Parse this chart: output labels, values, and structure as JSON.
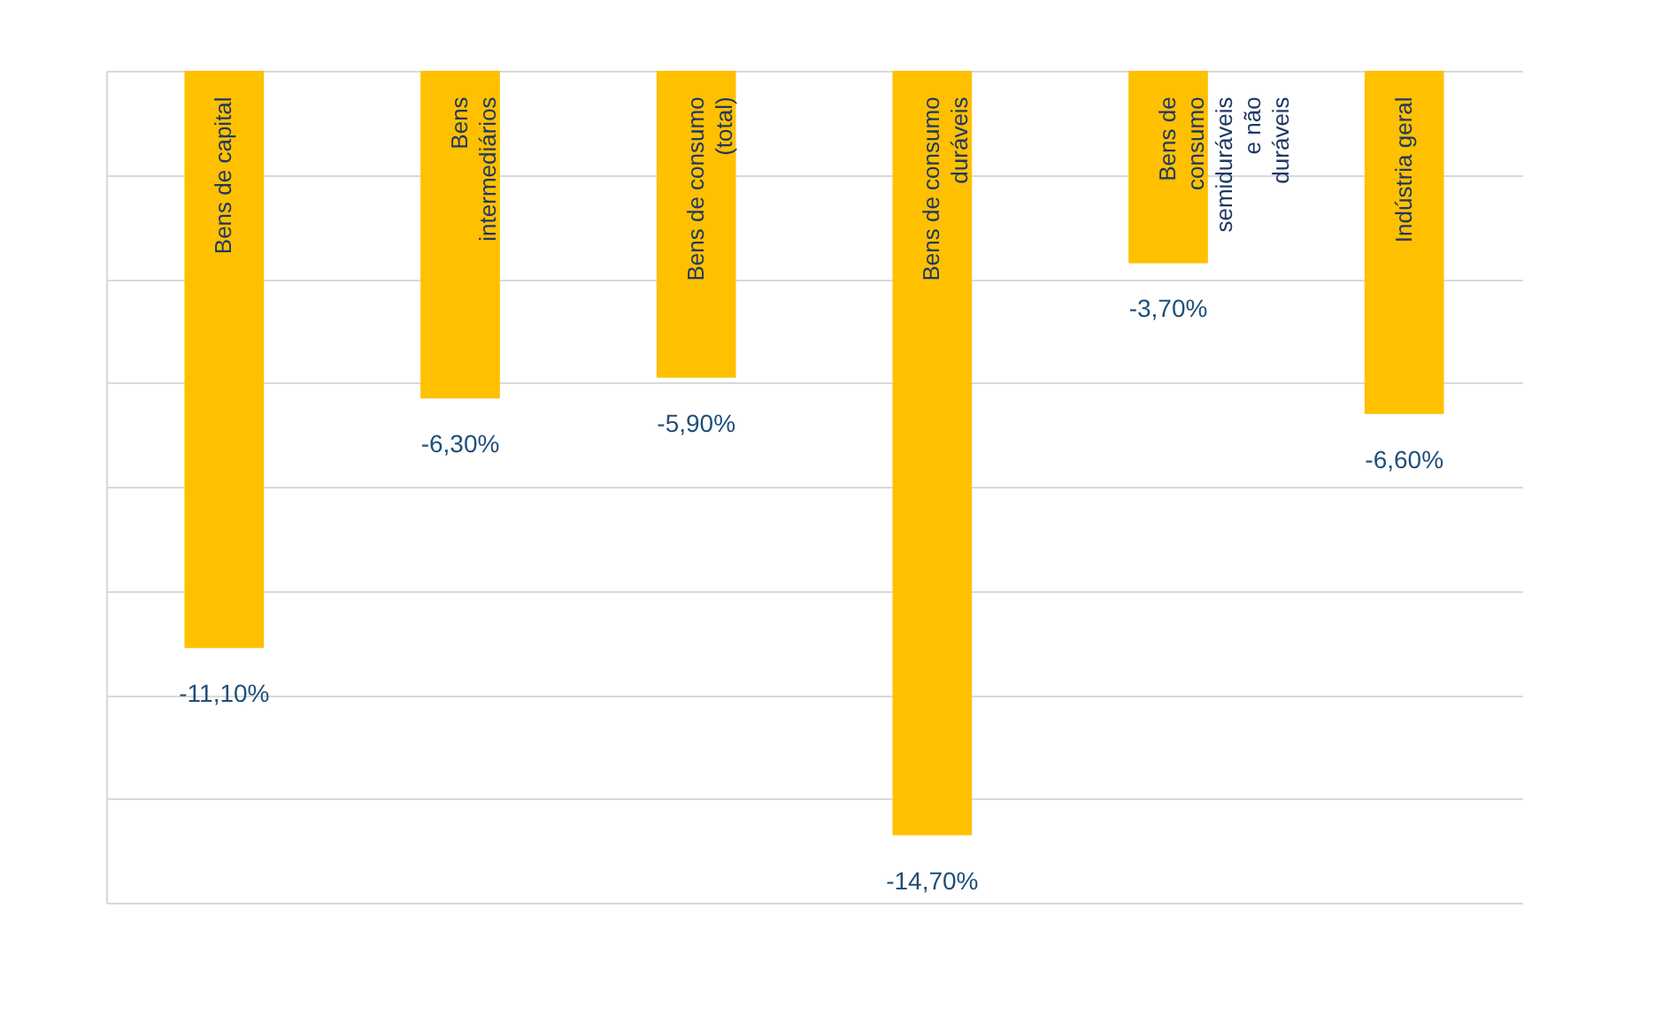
{
  "chart_data": {
    "type": "bar",
    "categories": [
      "Bens de capital",
      "Bens intermediários",
      "Bens de consumo (total)",
      "Bens de consumo duráveis",
      "Bens de consumo semiduráveis e não duráveis",
      "Indústria geral"
    ],
    "values": [
      -11.1,
      -6.3,
      -5.9,
      -14.7,
      -3.7,
      -6.6
    ],
    "color": "#ffc000",
    "value_labels": [
      "-11,10%",
      "-6,30%",
      "-5,90%",
      "-14,70%",
      "-3,70%",
      "-6,60%"
    ],
    "ylim": [
      -16,
      0
    ],
    "yticks": [
      -16,
      -14,
      -12,
      -10,
      -8,
      -6,
      -4,
      -2,
      0
    ],
    "grid": "y",
    "tick_labels": "x"
  }
}
